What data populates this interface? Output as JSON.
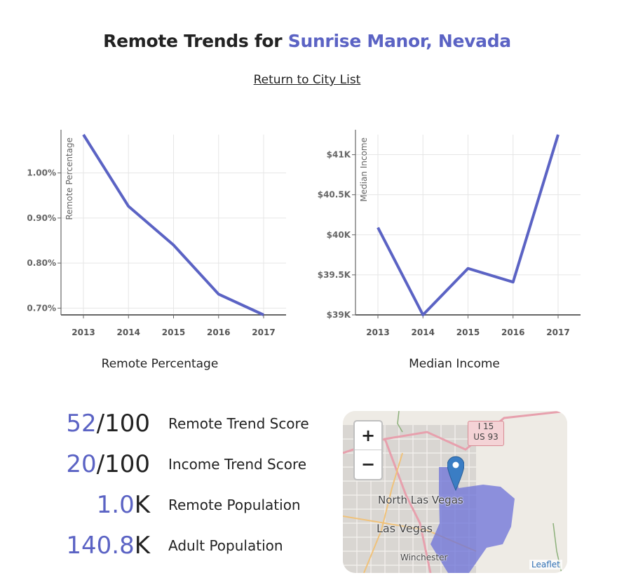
{
  "page": {
    "title_prefix": "Remote Trends for ",
    "city": "Sunrise Manor, Nevada",
    "return_link": "Return to City List"
  },
  "chart_data": [
    {
      "type": "line",
      "x": [
        2013,
        2014,
        2015,
        2016,
        2017
      ],
      "values": [
        1.085,
        0.926,
        0.84,
        0.731,
        0.685
      ],
      "y_unit": "percent",
      "ylim": [
        0.685,
        1.085
      ],
      "yticks": [
        0.7,
        0.8,
        0.9,
        1.0
      ],
      "ytick_labels": [
        "0.70%",
        "0.80%",
        "0.90%",
        "1.00%"
      ],
      "xtick_labels": [
        "2013",
        "2014",
        "2015",
        "2016",
        "2017"
      ],
      "ylabel": "Remote Percentage",
      "caption": "Remote Percentage",
      "grid": true,
      "color": "#5b63c4"
    },
    {
      "type": "line",
      "x": [
        2013,
        2014,
        2015,
        2016,
        2017
      ],
      "values": [
        40090,
        39000,
        39580,
        39410,
        41250
      ],
      "y_unit": "dollars",
      "ylim": [
        39000,
        41250
      ],
      "yticks": [
        39000,
        39500,
        40000,
        40500,
        41000
      ],
      "ytick_labels": [
        "$39K",
        "$39.5K",
        "$40K",
        "$40.5K",
        "$41K"
      ],
      "xtick_labels": [
        "2013",
        "2014",
        "2015",
        "2016",
        "2017"
      ],
      "ylabel": "Median Income",
      "caption": "Median Income",
      "grid": true,
      "color": "#5b63c4"
    }
  ],
  "stats": [
    {
      "value": "52",
      "suffix": "/100",
      "label": "Remote Trend Score"
    },
    {
      "value": "20",
      "suffix": "/100",
      "label": "Income Trend Score"
    },
    {
      "value": "1.0",
      "suffix": "K",
      "label": "Remote Population"
    },
    {
      "value": "140.8",
      "suffix": "K",
      "label": "Adult Population"
    }
  ],
  "map": {
    "zoom_in": "+",
    "zoom_out": "−",
    "attribution": "Leaflet",
    "labels": {
      "north_las_vegas": "North Las Vegas",
      "las_vegas": "Las Vegas",
      "winchester": "Winchester",
      "highway_1": "I 15",
      "highway_2": "US 93"
    },
    "highlight_color": "#6b70d8",
    "marker_icon": "map-marker-icon"
  }
}
